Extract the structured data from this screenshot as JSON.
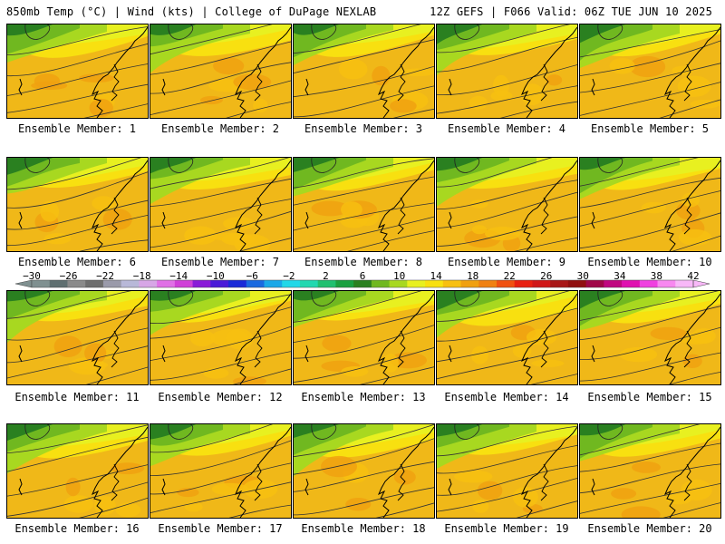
{
  "header": {
    "left": "850mb Temp (°C) | Wind (kts) | College of DuPage NEXLAB",
    "right": "12Z GEFS | F066 Valid: 06Z TUE JUN 10 2025"
  },
  "colorbar": {
    "labels": [
      "−30",
      "−26",
      "−22",
      "−18",
      "−14",
      "−10",
      "−6",
      "−2",
      "2",
      "6",
      "10",
      "14",
      "18",
      "22",
      "26",
      "30",
      "34",
      "38",
      "42"
    ],
    "colors": [
      "#7f9090",
      "#5f6f70",
      "#8a8a8a",
      "#6e6e6e",
      "#9a9aaa",
      "#b8b8d8",
      "#d7a6e6",
      "#e070e6",
      "#d040d8",
      "#8a1ad8",
      "#4a1ad8",
      "#1a2ad8",
      "#1a6ae0",
      "#1aa8e8",
      "#22d8e8",
      "#22d8b0",
      "#20c070",
      "#1aa040",
      "#2a8020",
      "#70b820",
      "#a8d820",
      "#e8f020",
      "#f8e010",
      "#f8c010",
      "#f0a010",
      "#f08010",
      "#f05010",
      "#e82010",
      "#d01818",
      "#a81818",
      "#901010",
      "#a00848",
      "#c00880",
      "#e010b0",
      "#f040e0",
      "#f888f0",
      "#f8b8f8"
    ]
  },
  "panels": [
    {
      "label": "Ensemble Member: 1"
    },
    {
      "label": "Ensemble Member: 2"
    },
    {
      "label": "Ensemble Member: 3"
    },
    {
      "label": "Ensemble Member: 4"
    },
    {
      "label": "Ensemble Member: 5"
    },
    {
      "label": "Ensemble Member: 6"
    },
    {
      "label": "Ensemble Member: 7"
    },
    {
      "label": "Ensemble Member: 8"
    },
    {
      "label": "Ensemble Member: 9"
    },
    {
      "label": "Ensemble Member: 10"
    },
    {
      "label": "Ensemble Member: 11"
    },
    {
      "label": "Ensemble Member: 12"
    },
    {
      "label": "Ensemble Member: 13"
    },
    {
      "label": "Ensemble Member: 14"
    },
    {
      "label": "Ensemble Member: 15"
    },
    {
      "label": "Ensemble Member: 16"
    },
    {
      "label": "Ensemble Member: 17"
    },
    {
      "label": "Ensemble Member: 18"
    },
    {
      "label": "Ensemble Member: 19"
    },
    {
      "label": "Ensemble Member: 20"
    }
  ]
}
